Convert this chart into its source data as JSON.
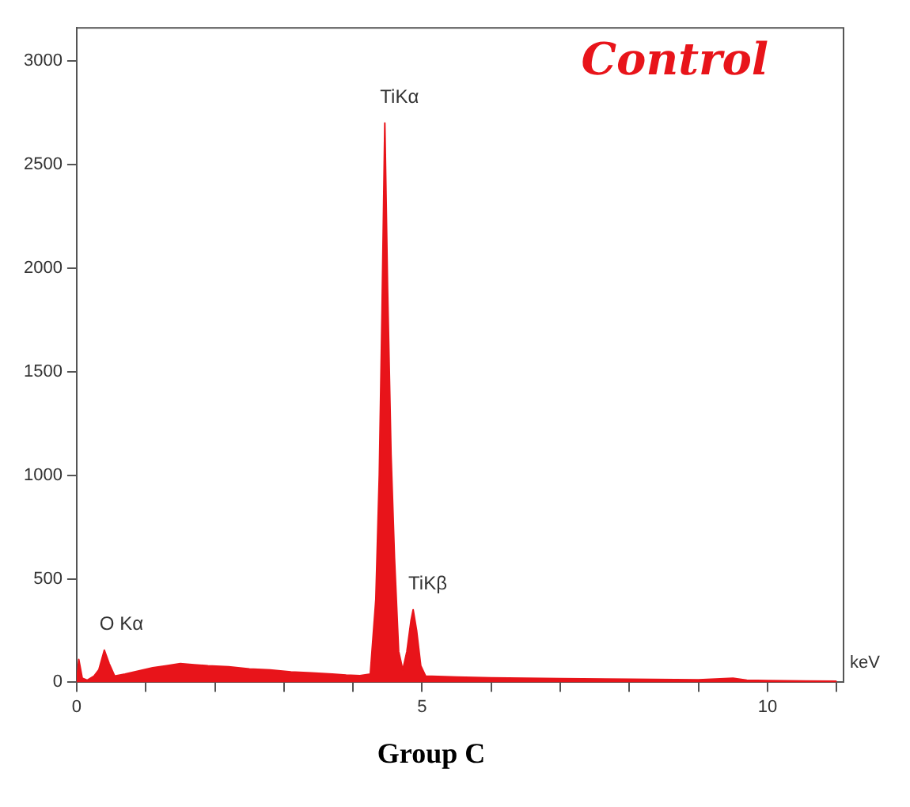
{
  "chart_data": {
    "type": "area",
    "title": "Group C",
    "xlabel": "keV",
    "x": [
      0,
      0.03,
      0.08,
      0.15,
      0.25,
      0.32,
      0.4,
      0.47,
      0.55,
      0.7,
      0.9,
      1.1,
      1.3,
      1.5,
      1.7,
      1.9,
      2.2,
      2.5,
      2.8,
      3.1,
      3.4,
      3.7,
      3.9,
      4.1,
      4.25,
      4.33,
      4.38,
      4.42,
      4.46,
      4.5,
      4.55,
      4.6,
      4.66,
      4.72,
      4.78,
      4.84,
      4.87,
      4.92,
      4.98,
      5.05,
      5.5,
      6,
      7,
      8,
      9,
      9.5,
      9.7,
      10,
      11
    ],
    "series": [
      {
        "color": "#e8141a",
        "values": [
          0,
          110,
          20,
          10,
          30,
          60,
          155,
          90,
          30,
          40,
          55,
          70,
          80,
          90,
          85,
          80,
          75,
          65,
          60,
          50,
          45,
          40,
          35,
          32,
          40,
          400,
          1000,
          1800,
          2700,
          1900,
          1100,
          600,
          150,
          60,
          150,
          300,
          350,
          250,
          80,
          30,
          25,
          22,
          18,
          15,
          12,
          20,
          10,
          8,
          5
        ]
      }
    ],
    "xlim": [
      0,
      11.1
    ],
    "ylim": [
      0,
      3160
    ],
    "xticks": [
      0,
      {
        "value": 1,
        "label": null
      },
      {
        "value": 2,
        "label": null
      },
      {
        "value": 3,
        "label": null
      },
      {
        "value": 4,
        "label": null
      },
      5,
      {
        "value": 6,
        "label": null
      },
      {
        "value": 7,
        "label": null
      },
      {
        "value": 8,
        "label": null
      },
      {
        "value": 9,
        "label": null
      },
      10,
      {
        "value": 11,
        "label": null
      }
    ],
    "yticks": [
      0,
      500,
      1000,
      1500,
      2000,
      2500,
      3000
    ],
    "grid": false,
    "legend": false,
    "marker": "none",
    "annotations": [
      {
        "text": "TiKα",
        "x": 4.46,
        "y": 2700
      },
      {
        "text": "TiKβ",
        "x": 4.87,
        "y": 350
      },
      {
        "text": "O Kα",
        "x": 0.4,
        "y": 155
      },
      "Control"
    ]
  }
}
